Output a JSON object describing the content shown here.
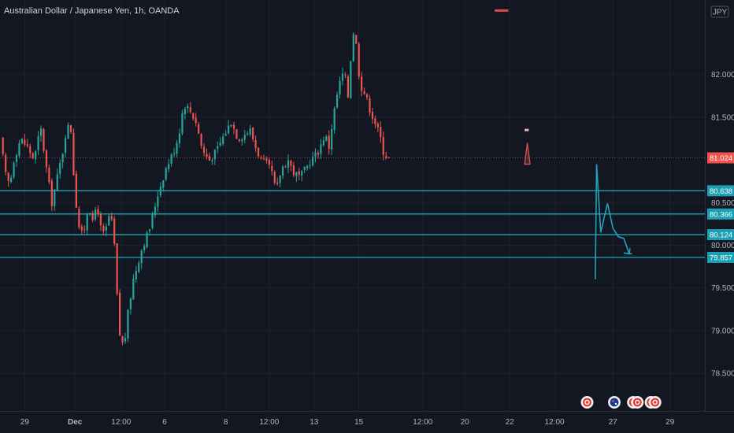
{
  "header": {
    "title": "Australian Dollar / Japanese Yen, 1h, OANDA"
  },
  "currency_badge": "JPY",
  "colors": {
    "background": "#131722",
    "grid": "#1e222d",
    "up": "#26a69a",
    "down": "#ef5350",
    "level": "#1fa3b8",
    "tag_level": "#1a9fb3",
    "tag_price": "#ef5350",
    "marker_red": "#e04848",
    "pattern": "#f0b8b0"
  },
  "chart_data": {
    "type": "candlestick",
    "title": "Australian Dollar / Japanese Yen, 1h, OANDA",
    "ylim": [
      78.15,
      82.8
    ],
    "y_ticks": [
      {
        "value": 82.0,
        "label": "82.000"
      },
      {
        "value": 81.5,
        "label": "81.500"
      },
      {
        "value": 80.5,
        "label": "80.500"
      },
      {
        "value": 80.0,
        "label": "80.000"
      },
      {
        "value": 79.5,
        "label": "79.500"
      },
      {
        "value": 79.0,
        "label": "79.000"
      },
      {
        "value": 78.5,
        "label": "78.500"
      }
    ],
    "x_ticks": [
      "29",
      "Dec",
      "12:00",
      "6",
      "8",
      "12:00",
      "13",
      "15",
      "12:00",
      "20",
      "22",
      "12:00",
      "27",
      "29"
    ],
    "current_price": {
      "value": 81.024,
      "label": "81.024"
    },
    "levels": [
      {
        "value": 80.638,
        "label": "80.638"
      },
      {
        "value": 80.366,
        "label": "80.366"
      },
      {
        "value": 80.124,
        "label": "80.124"
      },
      {
        "value": 79.857,
        "label": "79.857"
      }
    ],
    "path_anchors": [
      [
        21.3,
        79.6
      ],
      [
        21.35,
        80.95
      ],
      [
        21.5,
        80.15
      ],
      [
        21.75,
        80.49
      ],
      [
        21.95,
        80.2
      ],
      [
        22.15,
        80.1
      ],
      [
        22.35,
        80.08
      ],
      [
        22.55,
        79.9
      ],
      [
        22.65,
        79.9
      ]
    ],
    "path_arrow_at": [
      22.55,
      79.9
    ],
    "resistance_mark": {
      "start": 17.6,
      "end": 18.1,
      "value": 82.75
    },
    "pattern_bar": {
      "start": 18.7,
      "end": 18.85,
      "value": 81.35
    },
    "triangle": {
      "apex": [
        18.8,
        81.2
      ],
      "left": [
        18.7,
        80.95
      ],
      "right": [
        18.9,
        80.95
      ]
    },
    "event_icons": [
      {
        "x": 21.0,
        "kind": "flag-red"
      },
      {
        "x": 22.0,
        "kind": "flag-au"
      },
      {
        "x": 22.7,
        "kind": "flag-red"
      },
      {
        "x": 22.85,
        "kind": "flag-red"
      },
      {
        "x": 23.35,
        "kind": "flag-red"
      },
      {
        "x": 23.5,
        "kind": "flag-red"
      }
    ],
    "anchors": [
      [
        -0.5,
        81.25
      ],
      [
        -0.3,
        80.82
      ],
      [
        -0.15,
        80.7
      ],
      [
        0.0,
        81.0
      ],
      [
        0.25,
        81.25
      ],
      [
        0.5,
        81.15
      ],
      [
        0.75,
        81.0
      ],
      [
        0.9,
        81.25
      ],
      [
        1.0,
        81.35
      ],
      [
        1.2,
        80.9
      ],
      [
        1.4,
        80.5
      ],
      [
        1.6,
        80.8
      ],
      [
        1.8,
        81.1
      ],
      [
        1.95,
        81.4
      ],
      [
        2.1,
        81.35
      ],
      [
        2.25,
        80.6
      ],
      [
        2.45,
        80.1
      ],
      [
        2.6,
        80.2
      ],
      [
        2.75,
        80.5
      ],
      [
        2.9,
        80.25
      ],
      [
        3.05,
        80.5
      ],
      [
        3.25,
        80.1
      ],
      [
        3.4,
        80.2
      ],
      [
        3.55,
        80.4
      ],
      [
        3.7,
        80.0
      ],
      [
        3.8,
        79.4
      ],
      [
        3.9,
        78.95
      ],
      [
        4.05,
        78.8
      ],
      [
        4.2,
        79.2
      ],
      [
        4.4,
        79.6
      ],
      [
        4.7,
        79.95
      ],
      [
        5.0,
        80.2
      ],
      [
        5.3,
        80.6
      ],
      [
        5.6,
        80.9
      ],
      [
        5.95,
        81.15
      ],
      [
        6.1,
        81.35
      ],
      [
        6.25,
        81.65
      ],
      [
        6.45,
        81.6
      ],
      [
        6.7,
        81.45
      ],
      [
        6.95,
        81.1
      ],
      [
        7.2,
        81.0
      ],
      [
        7.45,
        81.1
      ],
      [
        7.75,
        81.3
      ],
      [
        8.0,
        81.45
      ],
      [
        8.25,
        81.25
      ],
      [
        8.5,
        81.3
      ],
      [
        8.7,
        81.35
      ],
      [
        8.9,
        81.15
      ],
      [
        9.1,
        81.0
      ],
      [
        9.3,
        80.95
      ],
      [
        9.5,
        80.85
      ],
      [
        9.65,
        80.62
      ],
      [
        9.85,
        80.9
      ],
      [
        10.1,
        81.0
      ],
      [
        10.3,
        80.85
      ],
      [
        10.55,
        80.8
      ],
      [
        10.75,
        80.9
      ],
      [
        10.95,
        81.0
      ],
      [
        11.2,
        81.1
      ],
      [
        11.45,
        81.3
      ],
      [
        11.6,
        81.15
      ],
      [
        11.75,
        81.5
      ],
      [
        11.95,
        81.85
      ],
      [
        12.15,
        82.05
      ],
      [
        12.3,
        81.75
      ],
      [
        12.45,
        82.4
      ],
      [
        12.55,
        82.6
      ],
      [
        12.65,
        82.1
      ],
      [
        12.8,
        81.85
      ],
      [
        12.95,
        81.75
      ],
      [
        13.15,
        81.55
      ],
      [
        13.35,
        81.4
      ],
      [
        13.5,
        81.25
      ],
      [
        13.6,
        81.1
      ],
      [
        13.75,
        81.02
      ]
    ]
  }
}
